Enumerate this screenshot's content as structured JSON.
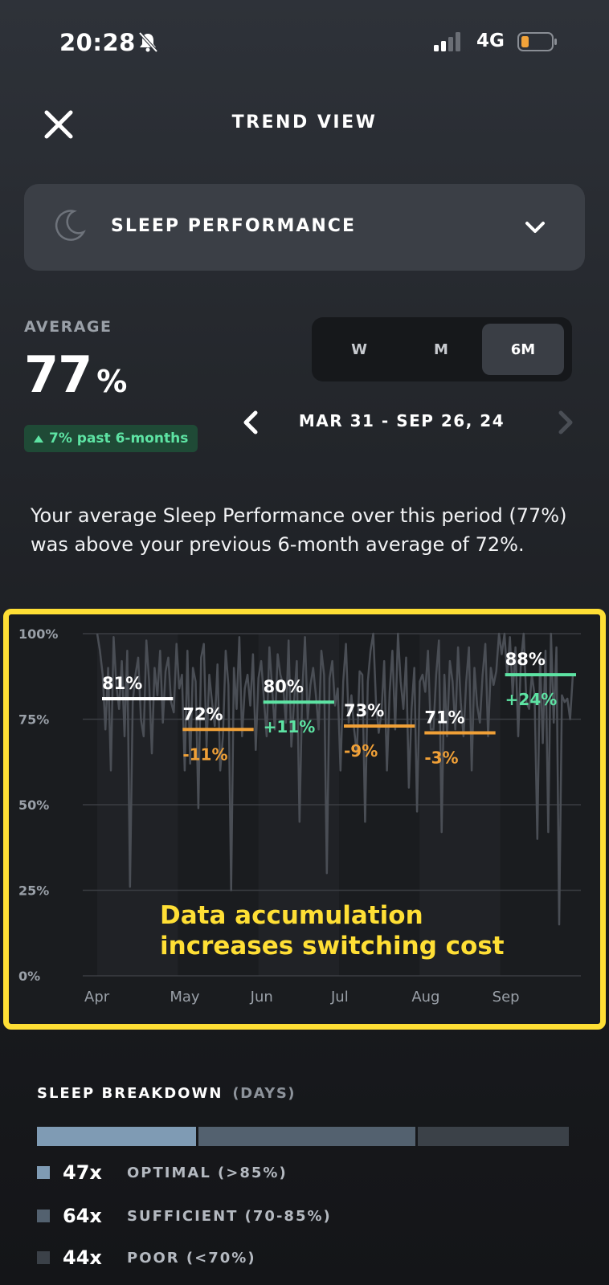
{
  "status_bar": {
    "time": "20:28",
    "network": "4G"
  },
  "header": {
    "title": "TREND VIEW"
  },
  "metric_selector": {
    "label": "SLEEP PERFORMANCE"
  },
  "average": {
    "label": "AVERAGE",
    "value": "77",
    "unit": "%",
    "trend": "7% past 6-months",
    "trend_color": "#5de3a3"
  },
  "range_tabs": {
    "items": [
      "W",
      "M",
      "6M"
    ],
    "selected": "6M"
  },
  "date_range": "MAR 31 - SEP 26, 24",
  "description": "Your average Sleep Performance over this period (77%) was above your previous 6-month average of 72%.",
  "chart_data": {
    "type": "line",
    "y_ticks": [
      "100%",
      "75%",
      "50%",
      "25%",
      "0%"
    ],
    "x_ticks": [
      "Apr",
      "May",
      "Jun",
      "Jul",
      "Aug",
      "Sep"
    ],
    "ylim": [
      0,
      100
    ],
    "monthly_averages": [
      {
        "month": "Apr",
        "value": 81,
        "label": "81%",
        "change": "",
        "color": "#ffffff"
      },
      {
        "month": "May",
        "value": 72,
        "label": "72%",
        "change": "-11%",
        "color": "#f0a037"
      },
      {
        "month": "Jun",
        "value": 80,
        "label": "80%",
        "change": "+11%",
        "color": "#5de3a3"
      },
      {
        "month": "Jul",
        "value": 73,
        "label": "73%",
        "change": "-9%",
        "color": "#f0a037"
      },
      {
        "month": "Aug",
        "value": 71,
        "label": "71%",
        "change": "-3%",
        "color": "#f0a037"
      },
      {
        "month": "Sep",
        "value": 88,
        "label": "88%",
        "change": "+24%",
        "color": "#5de3a3"
      }
    ],
    "daily_values": [
      100,
      95,
      88,
      72,
      90,
      60,
      99,
      85,
      78,
      92,
      70,
      95,
      26,
      80,
      88,
      93,
      75,
      70,
      98,
      86,
      65,
      90,
      82,
      95,
      74,
      89,
      93,
      80,
      77,
      97,
      84,
      88,
      60,
      95,
      62,
      90,
      86,
      49,
      93,
      97,
      67,
      88,
      80,
      73,
      91,
      60,
      70,
      95,
      85,
      25,
      90,
      78,
      99,
      70,
      84,
      88,
      79,
      94,
      66,
      87,
      92,
      81,
      70,
      96,
      84,
      72,
      94,
      88,
      85,
      74,
      98,
      67,
      80,
      92,
      45,
      83,
      99,
      75,
      85,
      90,
      82,
      72,
      95,
      88,
      30,
      87,
      92,
      79,
      84,
      60,
      86,
      97,
      74,
      82,
      72,
      65,
      89,
      88,
      45,
      86,
      95,
      100,
      80,
      71,
      77,
      92,
      60,
      83,
      95,
      72,
      100,
      86,
      78,
      93,
      55,
      78,
      90,
      48,
      86,
      88,
      83,
      95,
      72,
      72,
      88,
      98,
      42,
      88,
      70,
      92,
      86,
      72,
      96,
      80,
      70,
      86,
      96,
      60,
      90,
      79,
      74,
      88,
      97,
      70,
      90,
      85,
      89,
      100,
      94,
      100,
      88,
      99,
      82,
      96,
      70,
      92,
      100,
      80,
      78,
      88,
      82,
      40,
      93,
      68,
      95,
      42,
      100,
      74,
      96,
      15,
      82,
      80,
      81,
      75,
      88
    ],
    "series_color": "#4a4e55"
  },
  "annotation": {
    "line1": "Data accumulation",
    "line2": "increases switching cost",
    "color": "#ffdf35"
  },
  "sleep_breakdown": {
    "title": "SLEEP BREAKDOWN",
    "subtitle": "(DAYS)",
    "items": [
      {
        "count": "47x",
        "label": "OPTIMAL (>85%)",
        "days": 47,
        "color": "#7f9bb4"
      },
      {
        "count": "64x",
        "label": "SUFFICIENT (70-85%)",
        "days": 64,
        "color": "#53616f"
      },
      {
        "count": "44x",
        "label": "POOR (<70%)",
        "days": 44,
        "color": "#3b4148"
      }
    ]
  }
}
